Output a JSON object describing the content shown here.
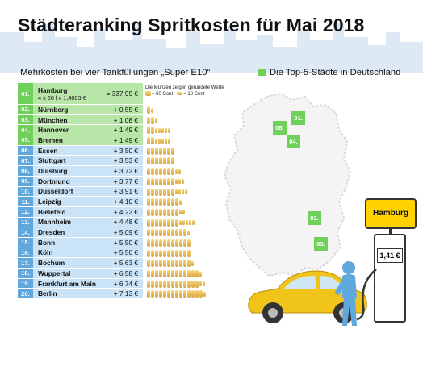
{
  "title": "Städteranking Spritkosten für Mai 2018",
  "subtitle": "Mehrkosten bei vier Tankfüllungen „Super E10“",
  "top5_label": "Die Top-5-Städte in Deutschland",
  "coin_legend": {
    "note": "Die Münzen zeigen gerundete Werte",
    "big": "= 50 Cent",
    "small": "= 10 Cent"
  },
  "first": {
    "rank": "01.",
    "city": "Hamburg",
    "formula": "4 x 60 l x 1,4083 €",
    "price": "= 337,99 €"
  },
  "rows": [
    {
      "rank": "02.",
      "city": "Nürnberg",
      "price": "+ 0,55 €",
      "cents": 55,
      "top": true
    },
    {
      "rank": "03.",
      "city": "München",
      "price": "+ 1,08 €",
      "cents": 108,
      "top": true
    },
    {
      "rank": "04.",
      "city": "Hannover",
      "price": "+ 1,49 €",
      "cents": 149,
      "top": true
    },
    {
      "rank": "05.",
      "city": "Bremen",
      "price": "+ 1,49 €",
      "cents": 149,
      "top": true
    },
    {
      "rank": "06.",
      "city": "Essen",
      "price": "+ 3,50 €",
      "cents": 350,
      "top": false
    },
    {
      "rank": "07.",
      "city": "Stuttgart",
      "price": "+ 3,53 €",
      "cents": 353,
      "top": false
    },
    {
      "rank": "08.",
      "city": "Duisburg",
      "price": "+ 3,72 €",
      "cents": 372,
      "top": false
    },
    {
      "rank": "09.",
      "city": "Dortmund",
      "price": "+ 3,77 €",
      "cents": 377,
      "top": false
    },
    {
      "rank": "10.",
      "city": "Düsseldorf",
      "price": "+ 3,91 €",
      "cents": 391,
      "top": false
    },
    {
      "rank": "11.",
      "city": "Leipzig",
      "price": "+ 4,10 €",
      "cents": 410,
      "top": false
    },
    {
      "rank": "12.",
      "city": "Bielefeld",
      "price": "+ 4,22 €",
      "cents": 422,
      "top": false
    },
    {
      "rank": "13.",
      "city": "Mannheim",
      "price": "+ 4,48 €",
      "cents": 448,
      "top": false
    },
    {
      "rank": "14.",
      "city": "Dresden",
      "price": "+ 5,09 €",
      "cents": 509,
      "top": false
    },
    {
      "rank": "15.",
      "city": "Bonn",
      "price": "+ 5,50 €",
      "cents": 550,
      "top": false
    },
    {
      "rank": "16.",
      "city": "Köln",
      "price": "+ 5,50 €",
      "cents": 550,
      "top": false
    },
    {
      "rank": "17.",
      "city": "Bochum",
      "price": "+ 5,63 €",
      "cents": 563,
      "top": false
    },
    {
      "rank": "18.",
      "city": "Wuppertal",
      "price": "+ 6,58 €",
      "cents": 658,
      "top": false
    },
    {
      "rank": "19.",
      "city": "Frankfurt am Main",
      "price": "+ 6,74 €",
      "cents": 674,
      "top": false
    },
    {
      "rank": "20.",
      "city": "Berlin",
      "price": "+ 7,13 €",
      "cents": 713,
      "top": false
    }
  ],
  "map_markers": [
    "01.",
    "02.",
    "03.",
    "04.",
    "05."
  ],
  "pump": {
    "sign": "Hamburg",
    "display": "1,41 €"
  },
  "colors": {
    "green": "#6fd15a",
    "blue": "#5fa7dd",
    "coin": "#e6b85a",
    "car": "#f0c419",
    "sign": "#ffd200"
  }
}
